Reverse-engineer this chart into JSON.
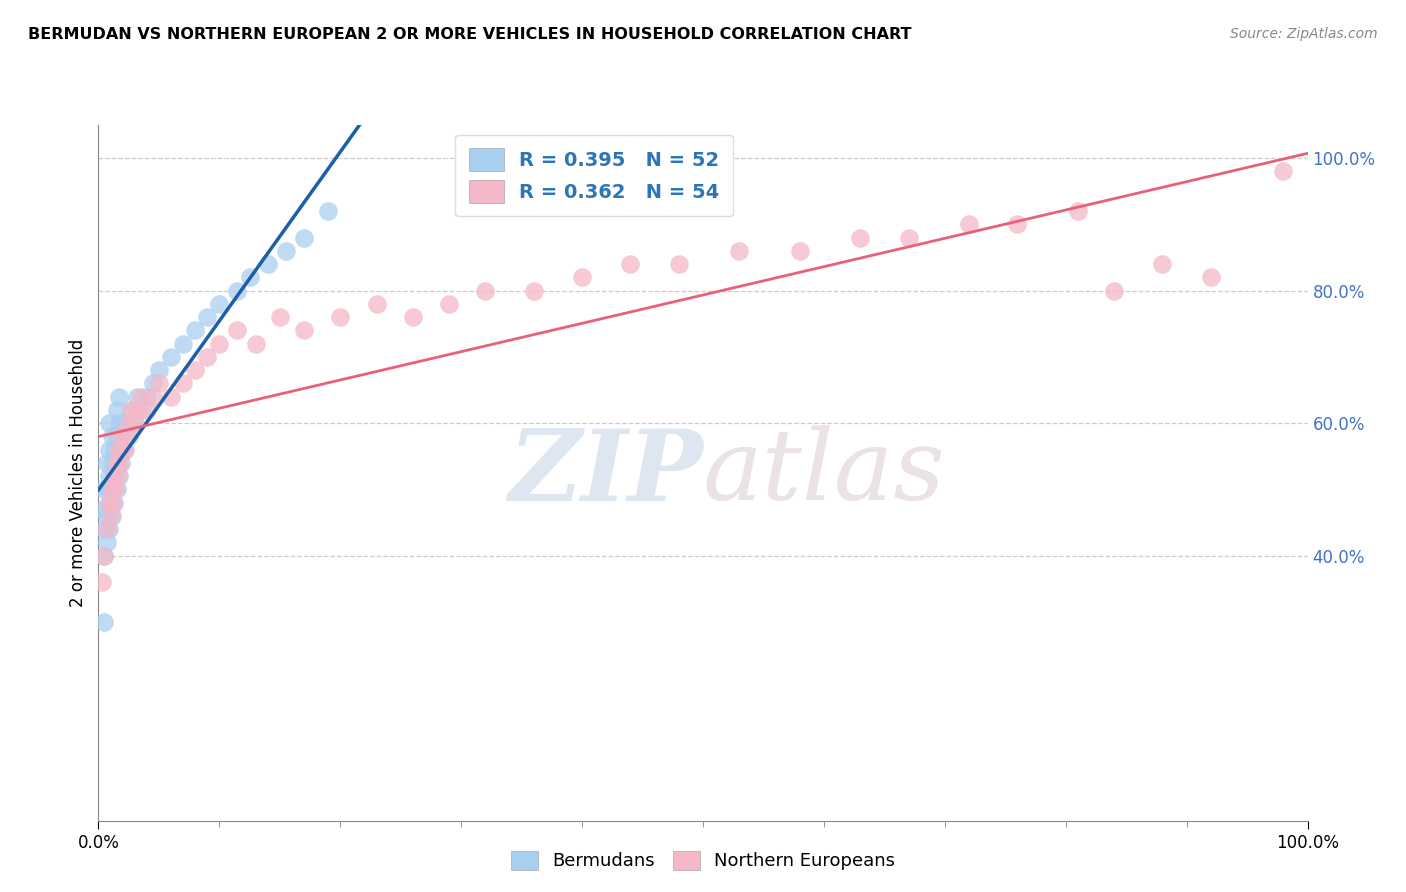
{
  "title": "BERMUDAN VS NORTHERN EUROPEAN 2 OR MORE VEHICLES IN HOUSEHOLD CORRELATION CHART",
  "source": "Source: ZipAtlas.com",
  "ylabel": "2 or more Vehicles in Household",
  "watermark_zip": "ZIP",
  "watermark_atlas": "atlas",
  "legend_blue_r": "R = 0.395",
  "legend_blue_n": "N = 52",
  "legend_pink_r": "R = 0.362",
  "legend_pink_n": "N = 54",
  "blue_color": "#A8CFF0",
  "pink_color": "#F5B8C8",
  "blue_line_color": "#1A5FA8",
  "pink_line_color": "#E8607A",
  "xlim": [
    0.0,
    1.0
  ],
  "ylim": [
    0.0,
    1.05
  ],
  "yticks": [
    0.4,
    0.6,
    0.8,
    1.0
  ],
  "ytick_labels": [
    "40.0%",
    "60.0%",
    "80.0%",
    "100.0%"
  ],
  "blue_x": [
    0.005,
    0.005,
    0.005,
    0.005,
    0.005,
    0.007,
    0.007,
    0.007,
    0.007,
    0.009,
    0.009,
    0.009,
    0.009,
    0.009,
    0.011,
    0.011,
    0.011,
    0.011,
    0.013,
    0.013,
    0.013,
    0.015,
    0.015,
    0.015,
    0.015,
    0.017,
    0.017,
    0.017,
    0.017,
    0.019,
    0.019,
    0.021,
    0.022,
    0.025,
    0.027,
    0.03,
    0.032,
    0.035,
    0.04,
    0.045,
    0.05,
    0.06,
    0.07,
    0.08,
    0.09,
    0.1,
    0.115,
    0.125,
    0.14,
    0.155,
    0.17,
    0.19
  ],
  "blue_y": [
    0.3,
    0.4,
    0.44,
    0.47,
    0.5,
    0.42,
    0.46,
    0.5,
    0.54,
    0.44,
    0.48,
    0.52,
    0.56,
    0.6,
    0.46,
    0.5,
    0.54,
    0.58,
    0.48,
    0.52,
    0.56,
    0.5,
    0.54,
    0.58,
    0.62,
    0.52,
    0.56,
    0.6,
    0.64,
    0.54,
    0.58,
    0.56,
    0.6,
    0.58,
    0.62,
    0.6,
    0.64,
    0.62,
    0.64,
    0.66,
    0.68,
    0.7,
    0.72,
    0.74,
    0.76,
    0.78,
    0.8,
    0.82,
    0.84,
    0.86,
    0.88,
    0.92
  ],
  "pink_x": [
    0.003,
    0.005,
    0.007,
    0.009,
    0.01,
    0.011,
    0.012,
    0.013,
    0.014,
    0.015,
    0.016,
    0.017,
    0.018,
    0.019,
    0.02,
    0.022,
    0.024,
    0.025,
    0.027,
    0.03,
    0.032,
    0.035,
    0.04,
    0.045,
    0.05,
    0.06,
    0.07,
    0.08,
    0.09,
    0.1,
    0.115,
    0.13,
    0.15,
    0.17,
    0.2,
    0.23,
    0.26,
    0.29,
    0.32,
    0.36,
    0.4,
    0.44,
    0.48,
    0.53,
    0.58,
    0.63,
    0.67,
    0.72,
    0.76,
    0.81,
    0.84,
    0.88,
    0.92,
    0.98
  ],
  "pink_y": [
    0.36,
    0.4,
    0.44,
    0.48,
    0.46,
    0.5,
    0.48,
    0.52,
    0.5,
    0.54,
    0.52,
    0.56,
    0.54,
    0.58,
    0.56,
    0.56,
    0.58,
    0.6,
    0.62,
    0.6,
    0.62,
    0.64,
    0.62,
    0.64,
    0.66,
    0.64,
    0.66,
    0.68,
    0.7,
    0.72,
    0.74,
    0.72,
    0.76,
    0.74,
    0.76,
    0.78,
    0.76,
    0.78,
    0.8,
    0.8,
    0.82,
    0.84,
    0.84,
    0.86,
    0.86,
    0.88,
    0.88,
    0.9,
    0.9,
    0.92,
    0.8,
    0.84,
    0.82,
    0.98
  ]
}
